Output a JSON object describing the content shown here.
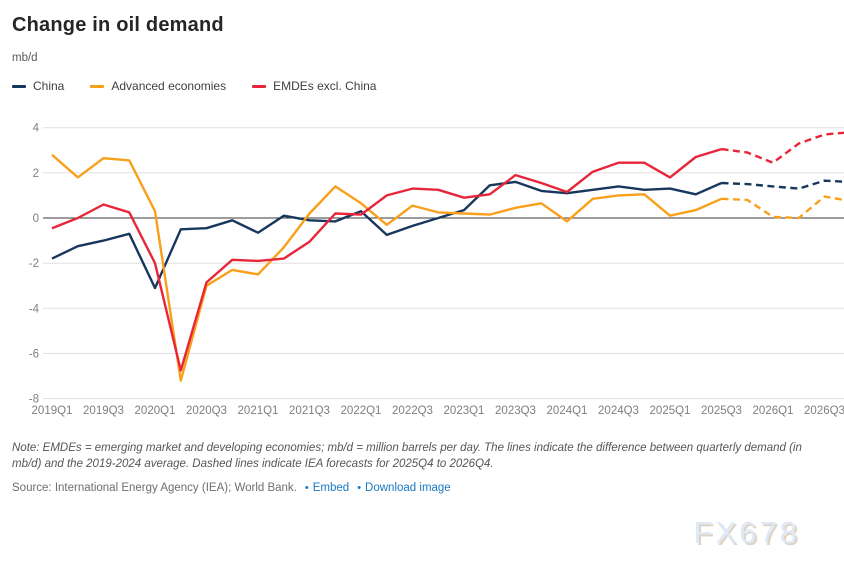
{
  "header": {
    "title": "Change in oil demand",
    "unit": "mb/d"
  },
  "chart_data": {
    "type": "line",
    "title": "Change in oil demand",
    "ylabel": "mb/d",
    "ylim": [
      -8,
      4
    ],
    "yticks": [
      4,
      2,
      0,
      -2,
      -4,
      -6,
      -8
    ],
    "grid": true,
    "zero_line": true,
    "legend_position": "top-left",
    "xtick_step": 2,
    "forecast_start_index": 27,
    "forecast_note": "dashed segments are IEA forecasts 2025Q4-2026Q4",
    "categories": [
      "2019Q1",
      "2019Q2",
      "2019Q3",
      "2019Q4",
      "2020Q1",
      "2020Q2",
      "2020Q3",
      "2020Q4",
      "2021Q1",
      "2021Q2",
      "2021Q3",
      "2021Q4",
      "2022Q1",
      "2022Q2",
      "2022Q3",
      "2022Q4",
      "2023Q1",
      "2023Q2",
      "2023Q3",
      "2023Q4",
      "2024Q1",
      "2024Q2",
      "2024Q3",
      "2024Q4",
      "2025Q1",
      "2025Q2",
      "2025Q3",
      "2025Q4",
      "2026Q1",
      "2026Q2",
      "2026Q3",
      "2026Q4"
    ],
    "series": [
      {
        "name": "China",
        "color": "#17375E",
        "values": [
          -1.8,
          -1.25,
          -1.0,
          -0.7,
          -3.1,
          -0.5,
          -0.45,
          -0.1,
          -0.65,
          0.1,
          -0.1,
          -0.15,
          0.3,
          -0.75,
          -0.35,
          0.0,
          0.35,
          1.45,
          1.6,
          1.2,
          1.1,
          1.25,
          1.4,
          1.25,
          1.3,
          1.05,
          1.55,
          1.5,
          1.4,
          1.3,
          1.65,
          1.6
        ]
      },
      {
        "name": "Advanced economies",
        "color": "#F9A01B",
        "values": [
          2.8,
          1.8,
          2.65,
          2.55,
          0.3,
          -7.2,
          -3.0,
          -2.3,
          -2.5,
          -1.3,
          0.2,
          1.4,
          0.65,
          -0.3,
          0.55,
          0.25,
          0.2,
          0.15,
          0.45,
          0.65,
          -0.15,
          0.85,
          1.0,
          1.05,
          0.1,
          0.35,
          0.85,
          0.8,
          0.05,
          0.0,
          0.95,
          0.75
        ]
      },
      {
        "name": "EMDEs excl. China",
        "color": "#E82639",
        "values": [
          -0.45,
          0.0,
          0.6,
          0.25,
          -2.0,
          -6.75,
          -2.85,
          -1.85,
          -1.9,
          -1.8,
          -1.05,
          0.2,
          0.15,
          1.0,
          1.3,
          1.25,
          0.9,
          1.05,
          1.9,
          1.55,
          1.15,
          2.05,
          2.45,
          2.45,
          1.8,
          2.7,
          3.05,
          2.9,
          2.45,
          3.3,
          3.7,
          3.8
        ]
      }
    ]
  },
  "note": {
    "text": "Note: EMDEs = emerging market and developing economies; mb/d = million barrels per day. The lines indicate the difference between quarterly demand (in mb/d) and the 2019-2024 average. Dashed lines indicate IEA forecasts for 2025Q4 to 2026Q4."
  },
  "source": {
    "text": "Source: International Energy Agency (IEA); World Bank.",
    "bullet": "•",
    "links": [
      {
        "label": "Embed"
      },
      {
        "label": "Download image"
      }
    ]
  },
  "watermark": {
    "text": "FX678"
  },
  "colors": {
    "grid": "#E0E0E0",
    "zero_line": "#3a3a3a",
    "tick_label": "#7f7f7f",
    "link": "#1779c4"
  }
}
